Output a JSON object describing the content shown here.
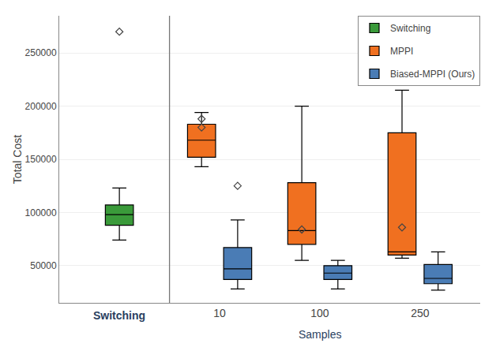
{
  "chart_data": {
    "type": "box",
    "ylabel": "Total Cost",
    "xlabel": "Samples",
    "categories": [
      null,
      "10",
      "100",
      "250"
    ],
    "series": [
      {
        "name": "Switching",
        "color": "#3a9a3a",
        "values": [
          {
            "whislo": 74000,
            "q1": 88000,
            "med": 98000,
            "q3": 107000,
            "whishi": 123000,
            "fliers": [
              270000
            ]
          },
          null,
          null,
          null
        ]
      },
      {
        "name": "MPPI",
        "color": "#f07020",
        "values": [
          null,
          {
            "whislo": 143000,
            "q1": 152000,
            "med": 168000,
            "q3": 183000,
            "whishi": 194000,
            "fliers": [
              188000,
              180000
            ]
          },
          {
            "whislo": 55000,
            "q1": 70000,
            "med": 83000,
            "q3": 128000,
            "whishi": 200000,
            "fliers": [
              84000
            ]
          },
          {
            "whislo": 57000,
            "q1": 60000,
            "med": 63000,
            "q3": 175000,
            "whishi": 215000,
            "fliers": [
              86000
            ]
          }
        ]
      },
      {
        "name": "Biased-MPPI (Ours)",
        "color": "#4a7cb5",
        "values": [
          null,
          {
            "whislo": 28000,
            "q1": 37000,
            "med": 47000,
            "q3": 67000,
            "whishi": 93000,
            "fliers": [
              125000
            ]
          },
          {
            "whislo": 28000,
            "q1": 37000,
            "med": 43000,
            "q3": 50000,
            "whishi": 55000,
            "fliers": []
          },
          {
            "whislo": 27000,
            "q1": 33000,
            "med": 38000,
            "q3": 51000,
            "whishi": 63000,
            "fliers": []
          }
        ]
      }
    ],
    "annotations": [
      {
        "text": "Switching",
        "x": 0
      }
    ],
    "ylim": [
      15000,
      285000
    ],
    "yticks": [
      50000,
      100000,
      150000,
      200000,
      250000
    ],
    "grid": true,
    "legend": "upper right"
  }
}
